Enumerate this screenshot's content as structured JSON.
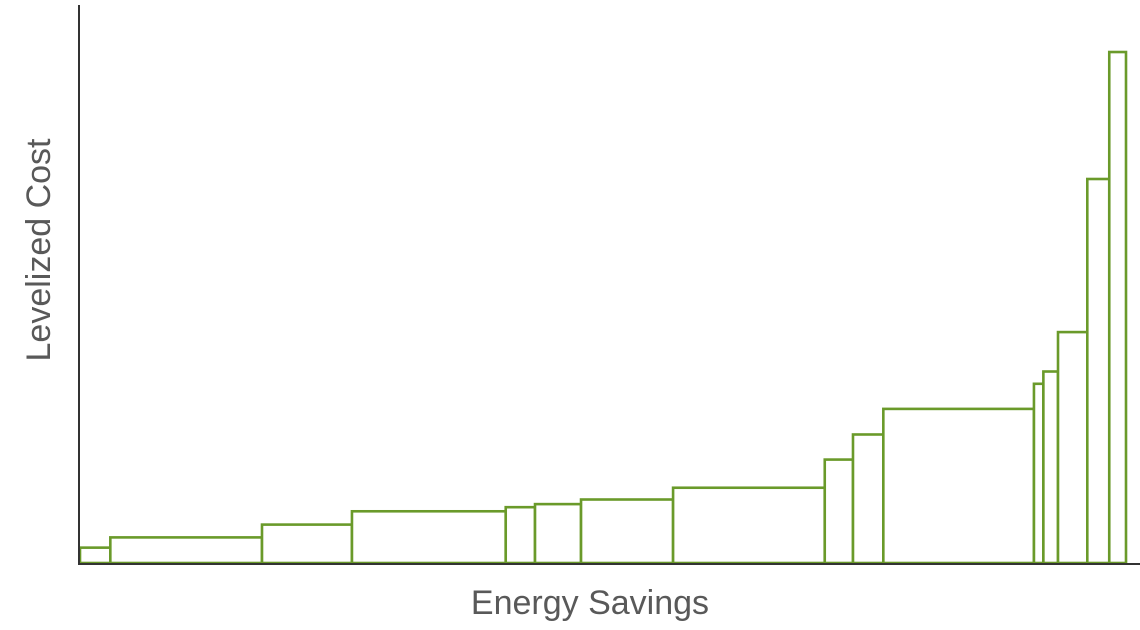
{
  "chart_data": {
    "type": "bar",
    "subtype": "variable-width supply curve",
    "title": "",
    "xlabel": "Energy Savings",
    "ylabel": "Levelized Cost",
    "x_ticks_shown": false,
    "y_ticks_shown": false,
    "grid": false,
    "legend": "none",
    "bar_fill": "#ffffff",
    "bar_outline_color": "#6a9a2a",
    "axis_color": "#333333",
    "label_color": "#595959",
    "xlim": [
      0,
      100
    ],
    "ylim": [
      0,
      100
    ],
    "bars": [
      {
        "width": 2.9,
        "value": 3.0
      },
      {
        "width": 14.5,
        "value": 5.0
      },
      {
        "width": 8.6,
        "value": 7.5
      },
      {
        "width": 14.7,
        "value": 10.1
      },
      {
        "width": 2.8,
        "value": 10.9
      },
      {
        "width": 4.4,
        "value": 11.5
      },
      {
        "width": 8.8,
        "value": 12.4
      },
      {
        "width": 14.5,
        "value": 14.7
      },
      {
        "width": 2.7,
        "value": 20.2
      },
      {
        "width": 2.9,
        "value": 25.1
      },
      {
        "width": 14.4,
        "value": 30.1
      },
      {
        "width": 0.9,
        "value": 35.0
      },
      {
        "width": 1.4,
        "value": 37.4
      },
      {
        "width": 2.8,
        "value": 45.1
      },
      {
        "width": 2.1,
        "value": 75.0
      },
      {
        "width": 1.6,
        "value": 99.8
      }
    ]
  }
}
